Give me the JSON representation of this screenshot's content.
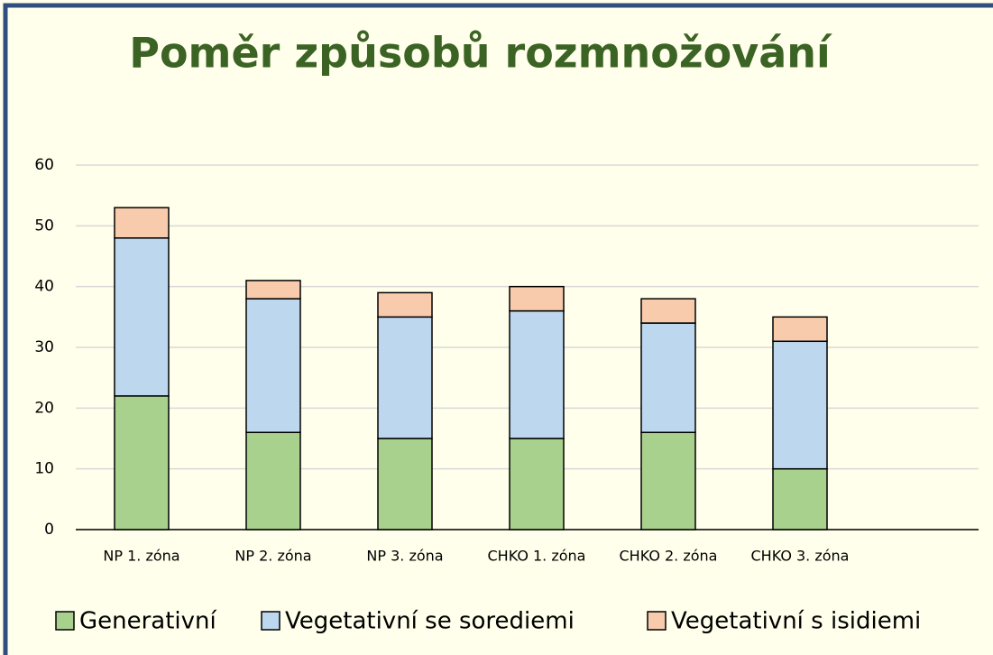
{
  "chart_data": {
    "type": "stacked_bar",
    "title": "Poměr způsobů rozmnožování",
    "categories": [
      "NP 1. zóna",
      "NP 2. zóna",
      "NP 3. zóna",
      "CHKO 1. zóna",
      "CHKO 2. zóna",
      "CHKO 3. zóna"
    ],
    "series": [
      {
        "name": "Generativní",
        "color": "#a9d18e",
        "values": [
          22,
          16,
          15,
          15,
          16,
          10
        ]
      },
      {
        "name": "Vegetativní se sorediemi",
        "color": "#bdd7ee",
        "values": [
          26,
          22,
          20,
          21,
          18,
          21
        ]
      },
      {
        "name": "Vegetativní s isidiemi",
        "color": "#f8cbad",
        "values": [
          5,
          3,
          4,
          4,
          4,
          4
        ]
      }
    ],
    "ylim": [
      0,
      60
    ],
    "yticks": [
      0,
      10,
      20,
      30,
      40,
      50,
      60
    ],
    "grid": true,
    "legend": "bottom"
  }
}
